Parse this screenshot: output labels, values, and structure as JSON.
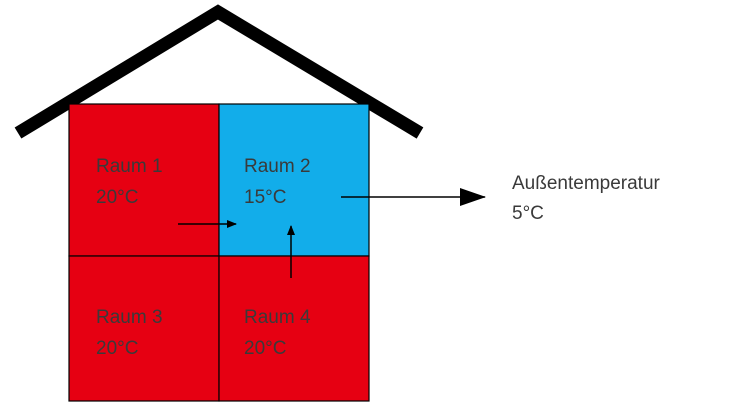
{
  "rooms": [
    {
      "name": "Raum 1",
      "temperature": "20°C",
      "color": "#e60012"
    },
    {
      "name": "Raum 2",
      "temperature": "15°C",
      "color": "#12adea"
    },
    {
      "name": "Raum 3",
      "temperature": "20°C",
      "color": "#e60012"
    },
    {
      "name": "Raum 4",
      "temperature": "20°C",
      "color": "#e60012"
    }
  ],
  "outside": {
    "label": "Außentemperatur",
    "temperature": "5°C"
  },
  "colors": {
    "warm": "#e60012",
    "cool": "#12adea",
    "line": "#000000",
    "text": "#3a3a3a"
  }
}
